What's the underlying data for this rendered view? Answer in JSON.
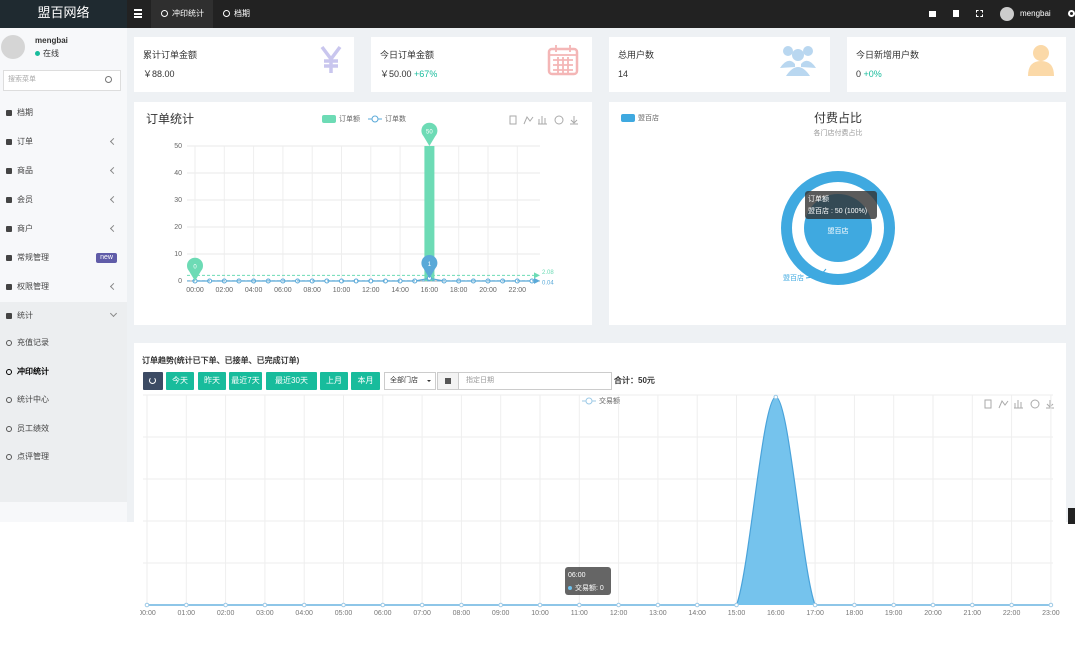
{
  "header": {
    "brand": "盟百网络",
    "tabs": [
      "冲印统计",
      "档期"
    ],
    "user": "mengbai"
  },
  "sidebar": {
    "user": "mengbai",
    "status": "在线",
    "search_placeholder": "搜索菜单",
    "menu": [
      "档期",
      "订单",
      "商品",
      "会员",
      "商户",
      "常规管理",
      "权限管理",
      "统计"
    ],
    "badge": "new",
    "submenu": [
      "充值记录",
      "冲印统计",
      "统计中心",
      "员工绩效",
      "点评管理"
    ]
  },
  "cards": [
    {
      "title": "累计订单金额",
      "value": "￥88.00"
    },
    {
      "title": "今日订单金额",
      "value": "￥50.00",
      "change": "+67%"
    },
    {
      "title": "总用户数",
      "value": "14"
    },
    {
      "title": "今日新增用户数",
      "value": "0",
      "change": "+0%"
    }
  ],
  "trend_toolbar": {
    "title": "订单趋势(统计已下单、已接单、已完成订单)",
    "buttons": [
      "今天",
      "昨天",
      "最近7天",
      "最近30天",
      "上月",
      "本月"
    ],
    "store_select": "全部门店",
    "date_placeholder": "指定日期",
    "total": "合计：50元"
  },
  "chart_data": [
    {
      "type": "bar",
      "title": "订单统计",
      "categories": [
        "00:00",
        null,
        "02:00",
        null,
        "04:00",
        null,
        "06:00",
        null,
        "08:00",
        null,
        "10:00",
        null,
        "12:00",
        null,
        "14:00",
        null,
        "16:00",
        null,
        "18:00",
        null,
        "20:00",
        null,
        "22:00",
        null
      ],
      "series": [
        {
          "name": "订单额",
          "type": "bar",
          "color": "#6ddbb5",
          "values": [
            0,
            0,
            0,
            0,
            0,
            0,
            0,
            0,
            0,
            0,
            0,
            0,
            0,
            0,
            0,
            0,
            50,
            0,
            0,
            0,
            0,
            0,
            0,
            0
          ]
        },
        {
          "name": "订单数",
          "type": "line",
          "color": "#5aa9d8",
          "values": [
            0,
            0,
            0,
            0,
            0,
            0,
            0,
            0,
            0,
            0,
            0,
            0,
            0,
            0,
            0,
            0,
            1,
            0,
            0,
            0,
            0,
            0,
            0,
            0
          ]
        }
      ],
      "ylim": [
        0,
        50
      ],
      "yticks": [
        0,
        10,
        20,
        30,
        40,
        50
      ],
      "grid": true,
      "average_lines": [
        2.08,
        0.04
      ]
    },
    {
      "type": "pie",
      "title": "付费占比",
      "subtitle": "各门店付费占比",
      "categories": [
        "盟百店"
      ],
      "values": [
        50
      ],
      "colors": [
        "#3fa9e0"
      ],
      "legend": "top-left",
      "tooltip": {
        "title": "订单额",
        "text": "盟百店 : 50 (100%)"
      }
    },
    {
      "type": "area",
      "categories": [
        "00:00",
        "01:00",
        "02:00",
        "03:00",
        "04:00",
        "05:00",
        "06:00",
        "07:00",
        "08:00",
        "09:00",
        "10:00",
        "11:00",
        "12:00",
        "13:00",
        "14:00",
        "15:00",
        "16:00",
        "17:00",
        "18:00",
        "19:00",
        "20:00",
        "21:00",
        "22:00",
        "23:00"
      ],
      "series": [
        {
          "name": "交易额",
          "color": "#6ec0ec",
          "values": [
            0,
            0,
            0,
            0,
            0,
            0,
            0,
            0,
            0,
            0,
            0,
            0,
            0,
            0,
            0,
            0,
            50,
            0,
            0,
            0,
            0,
            0,
            0,
            0
          ]
        }
      ],
      "ylim": [
        0,
        50
      ],
      "tooltip": {
        "title": "06:00",
        "text": "交易额: 0"
      }
    }
  ]
}
